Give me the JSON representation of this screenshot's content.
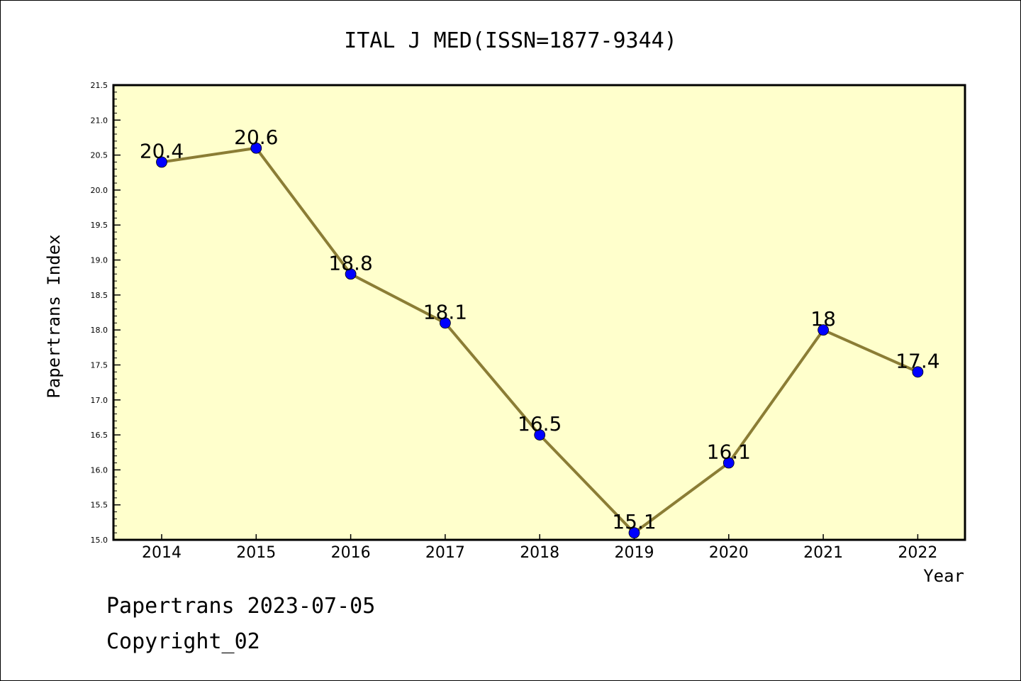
{
  "chart_data": {
    "type": "line",
    "title": "ITAL J MED(ISSN=1877-9344)",
    "xlabel": "Year",
    "ylabel": "Papertrans Index",
    "categories": [
      "2014",
      "2015",
      "2016",
      "2017",
      "2018",
      "2019",
      "2020",
      "2021",
      "2022"
    ],
    "values": [
      20.4,
      20.6,
      18.8,
      18.1,
      16.5,
      15.1,
      16.1,
      18,
      17.4
    ],
    "data_labels": [
      "20.4",
      "20.6",
      "18.8",
      "18.1",
      "16.5",
      "15.1",
      "16.1",
      "18",
      "17.4"
    ],
    "ylim": [
      15.0,
      21.5
    ],
    "yticks": [
      "15.0",
      "15.5",
      "16.0",
      "16.5",
      "17.0",
      "17.5",
      "18.0",
      "18.5",
      "19.0",
      "19.5",
      "20.0",
      "20.5",
      "21.0",
      "21.5"
    ],
    "grid": false,
    "colors": {
      "plot_background": "#ffffcc",
      "line": "#8b7d35",
      "marker": "#0000ff"
    }
  },
  "footer": {
    "line1": "Papertrans 2023-07-05",
    "line2": "Copyright_02"
  }
}
